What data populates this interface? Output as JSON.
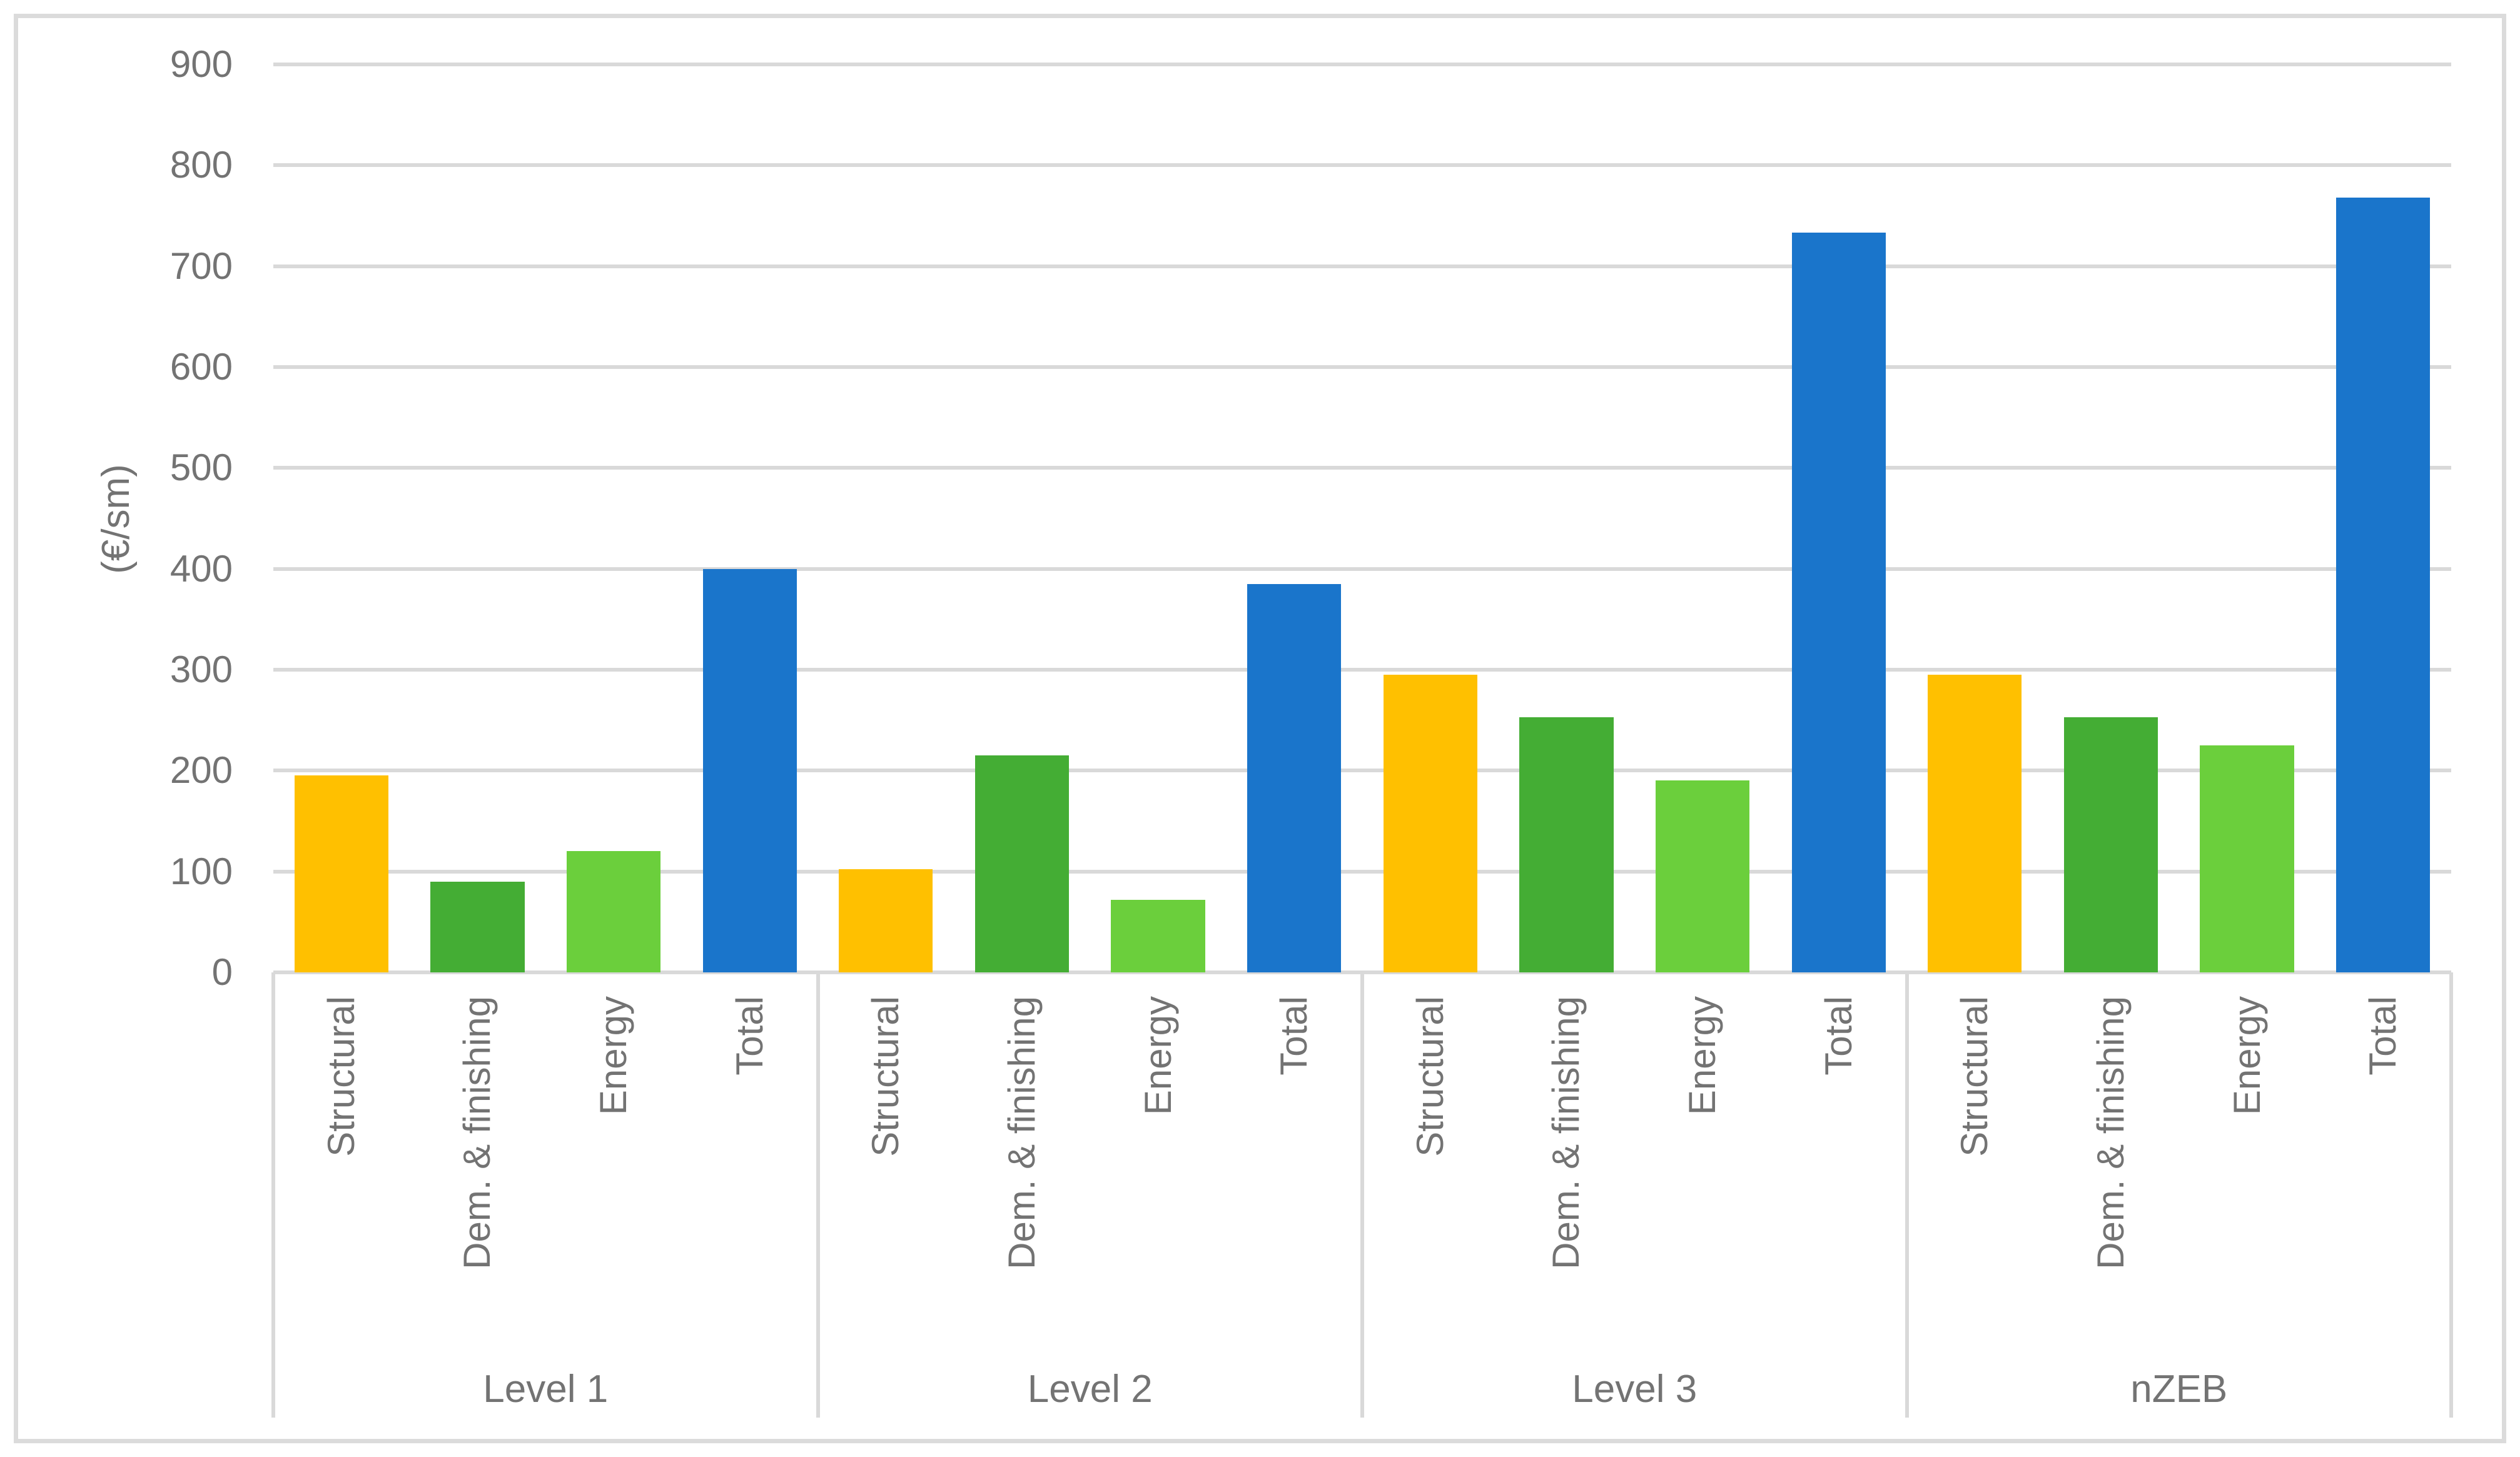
{
  "figure": {
    "background_color": "#FFFFFF",
    "frame_border_color": "#DBDBDB",
    "gridline_color": "#D9D9D9",
    "axis_text_color": "#737373"
  },
  "chart_data": {
    "type": "bar",
    "title": "",
    "xlabel": "",
    "ylabel": "(€/sm)",
    "ylim": [
      0,
      900
    ],
    "yticks": [
      0,
      100,
      200,
      300,
      400,
      500,
      600,
      700,
      800,
      900
    ],
    "grid": true,
    "legend": false,
    "categories": [
      "Structural",
      "Dem. & finishing",
      "Energy",
      "Total"
    ],
    "series_colors": {
      "Structural": "#FFC000",
      "Dem. & finishing": "#44AD34",
      "Energy": "#6BCF3C",
      "Total": "#1A75CB"
    },
    "groups": [
      {
        "label": "Level 1",
        "values": [
          195,
          90,
          120,
          400
        ]
      },
      {
        "label": "Level 2",
        "values": [
          102,
          215,
          72,
          385
        ]
      },
      {
        "label": "Level 3",
        "values": [
          295,
          253,
          190,
          733
        ]
      },
      {
        "label": "nZEB",
        "values": [
          295,
          253,
          225,
          768
        ]
      }
    ]
  }
}
